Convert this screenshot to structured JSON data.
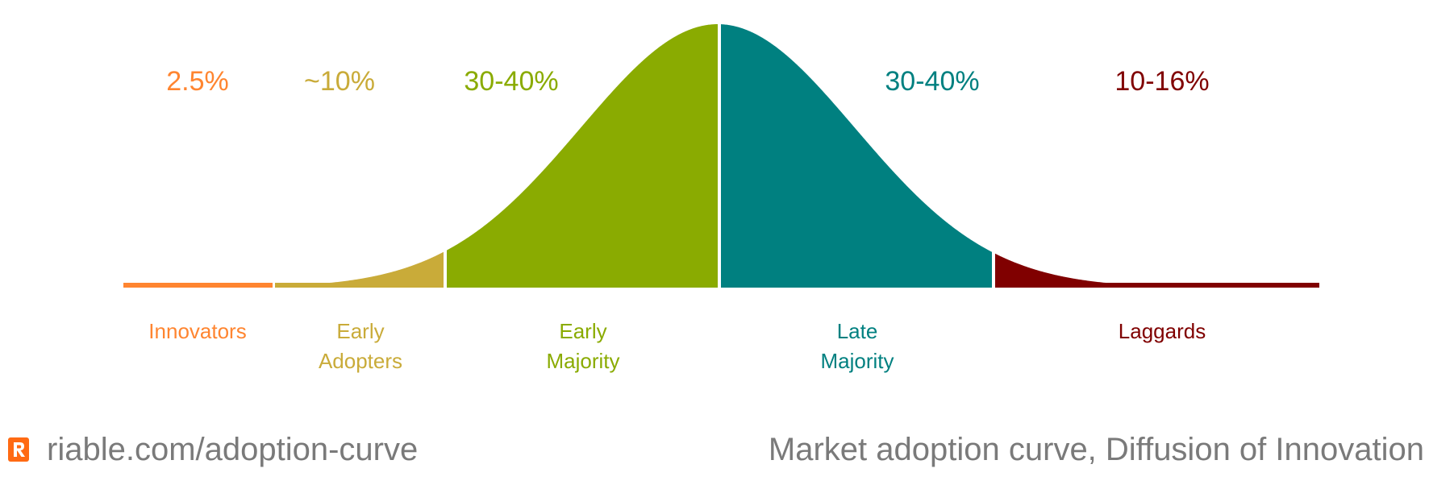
{
  "segments": [
    {
      "id": "innovators",
      "percent": "2.5%",
      "label_lines": [
        "Innovators"
      ],
      "color": "#ff8530"
    },
    {
      "id": "early-adopters",
      "percent": "~10%",
      "label_lines": [
        "Early",
        "Adopters"
      ],
      "color": "#c9ab39"
    },
    {
      "id": "early-majority",
      "percent": "30-40%",
      "label_lines": [
        "Early",
        "Majority"
      ],
      "color": "#8aab01"
    },
    {
      "id": "late-majority",
      "percent": "30-40%",
      "label_lines": [
        "Late",
        "Majority"
      ],
      "color": "#008080"
    },
    {
      "id": "laggards",
      "percent": "10-16%",
      "label_lines": [
        "Laggards"
      ],
      "color": "#800000"
    }
  ],
  "footer": {
    "url": "riable.com/adoption-curve",
    "caption": "Market adoption curve, Diffusion of Innovation",
    "logo_letter": "R",
    "logo_color": "#ff6a13",
    "text_color": "#7a7a7a"
  }
}
